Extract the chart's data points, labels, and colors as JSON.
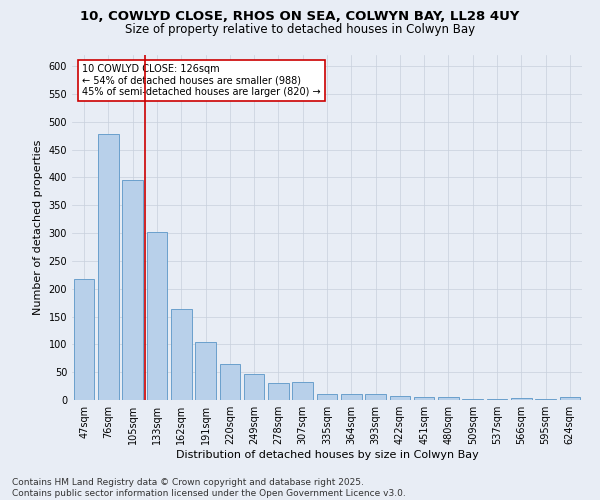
{
  "title_line1": "10, COWLYD CLOSE, RHOS ON SEA, COLWYN BAY, LL28 4UY",
  "title_line2": "Size of property relative to detached houses in Colwyn Bay",
  "xlabel": "Distribution of detached houses by size in Colwyn Bay",
  "ylabel": "Number of detached properties",
  "categories": [
    "47sqm",
    "76sqm",
    "105sqm",
    "133sqm",
    "162sqm",
    "191sqm",
    "220sqm",
    "249sqm",
    "278sqm",
    "307sqm",
    "335sqm",
    "364sqm",
    "393sqm",
    "422sqm",
    "451sqm",
    "480sqm",
    "509sqm",
    "537sqm",
    "566sqm",
    "595sqm",
    "624sqm"
  ],
  "values": [
    218,
    478,
    396,
    302,
    163,
    105,
    65,
    47,
    30,
    33,
    10,
    10,
    10,
    8,
    5,
    5,
    2,
    2,
    4,
    2,
    5
  ],
  "bar_color": "#b8d0ea",
  "bar_edge_color": "#6aa0cc",
  "background_color": "#e8edf5",
  "grid_color": "#c8d0dc",
  "vline_x_index": 2.5,
  "vline_color": "#cc0000",
  "annotation_text": "10 COWLYD CLOSE: 126sqm\n← 54% of detached houses are smaller (988)\n45% of semi-detached houses are larger (820) →",
  "annotation_box_color": "#ffffff",
  "annotation_box_edge": "#cc0000",
  "ylim": [
    0,
    620
  ],
  "yticks": [
    0,
    50,
    100,
    150,
    200,
    250,
    300,
    350,
    400,
    450,
    500,
    550,
    600
  ],
  "footer_text": "Contains HM Land Registry data © Crown copyright and database right 2025.\nContains public sector information licensed under the Open Government Licence v3.0.",
  "title_fontsize": 9.5,
  "subtitle_fontsize": 8.5,
  "xlabel_fontsize": 8,
  "ylabel_fontsize": 8,
  "tick_fontsize": 7,
  "annotation_fontsize": 7,
  "footer_fontsize": 6.5
}
